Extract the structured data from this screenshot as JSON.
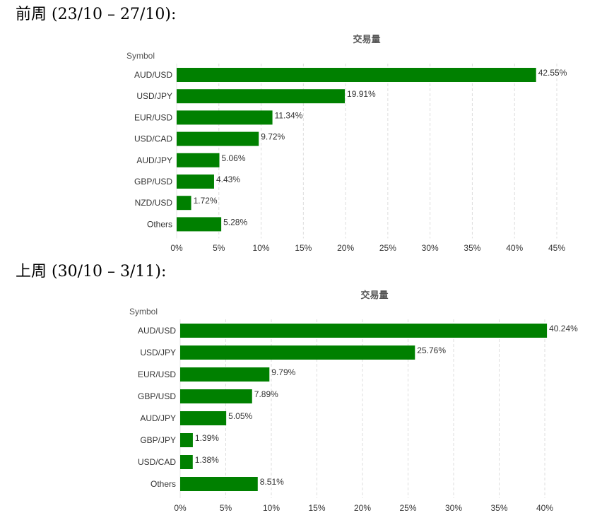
{
  "page": {
    "sections": [
      {
        "heading": "前周 (23/10 – 27/10):"
      },
      {
        "heading": "上周 (30/10 – 3/11):"
      }
    ]
  },
  "colors": {
    "bar": "#008000",
    "grid": "#dddddd",
    "text": "#333333"
  },
  "chart_data": [
    {
      "type": "bar",
      "orientation": "horizontal",
      "title": "交易量",
      "ylabel": "Symbol",
      "xlabel": "",
      "categories": [
        "AUD/USD",
        "USD/JPY",
        "EUR/USD",
        "USD/CAD",
        "AUD/JPY",
        "GBP/USD",
        "NZD/USD",
        "Others"
      ],
      "values": [
        42.55,
        19.91,
        11.34,
        9.72,
        5.06,
        4.43,
        1.72,
        5.28
      ],
      "value_labels": [
        "42.55%",
        "19.91%",
        "11.34%",
        "9.72%",
        "5.06%",
        "4.43%",
        "1.72%",
        "5.28%"
      ],
      "xlim": [
        0,
        45
      ],
      "xticks": [
        0,
        5,
        10,
        15,
        20,
        25,
        30,
        35,
        40,
        45
      ],
      "xtick_labels": [
        "0%",
        "5%",
        "10%",
        "15%",
        "20%",
        "25%",
        "30%",
        "35%",
        "40%",
        "45%"
      ],
      "grid": "vertical dashed"
    },
    {
      "type": "bar",
      "orientation": "horizontal",
      "title": "交易量",
      "ylabel": "Symbol",
      "xlabel": "",
      "categories": [
        "AUD/USD",
        "USD/JPY",
        "EUR/USD",
        "GBP/USD",
        "AUD/JPY",
        "GBP/JPY",
        "USD/CAD",
        "Others"
      ],
      "values": [
        40.24,
        25.76,
        9.79,
        7.89,
        5.05,
        1.39,
        1.38,
        8.51
      ],
      "value_labels": [
        "40.24%",
        "25.76%",
        "9.79%",
        "7.89%",
        "5.05%",
        "1.39%",
        "1.38%",
        "8.51%"
      ],
      "xlim": [
        0,
        40
      ],
      "xticks": [
        0,
        5,
        10,
        15,
        20,
        25,
        30,
        35,
        40
      ],
      "xtick_labels": [
        "0%",
        "5%",
        "10%",
        "15%",
        "20%",
        "25%",
        "30%",
        "35%",
        "40%"
      ],
      "grid": "vertical dashed"
    }
  ]
}
